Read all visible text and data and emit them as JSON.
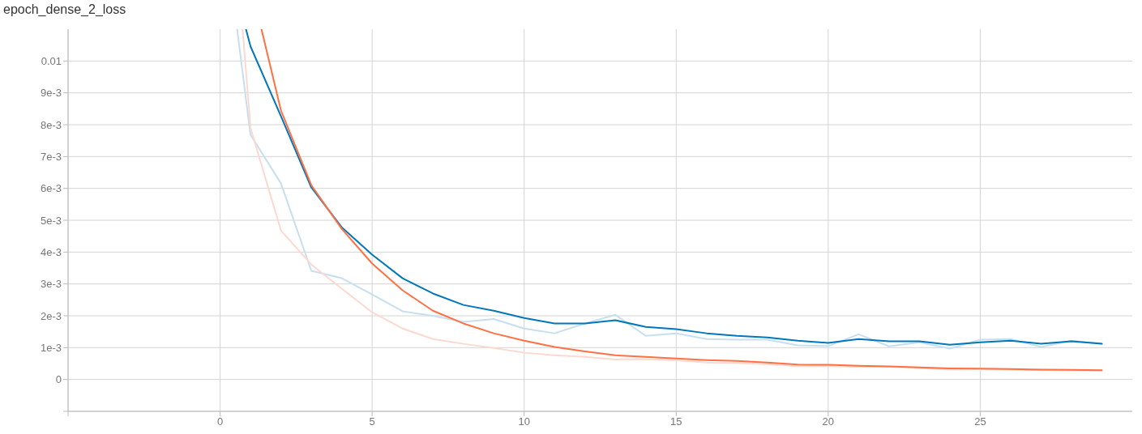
{
  "chart_data": {
    "type": "line",
    "title": "epoch_dense_2_loss",
    "xlim": [
      -5,
      30
    ],
    "xticks": [
      {
        "value": -5,
        "label": null
      },
      0,
      5,
      10,
      15,
      20,
      25
    ],
    "ylim": [
      -0.001,
      0.011
    ],
    "yticks": [
      {
        "value": -0.001,
        "label": null
      },
      0,
      {
        "value": 0.001,
        "label": "1e-3"
      },
      {
        "value": 0.002,
        "label": "2e-3"
      },
      {
        "value": 0.003,
        "label": "3e-3"
      },
      {
        "value": 0.004,
        "label": "4e-3"
      },
      {
        "value": 0.005,
        "label": "5e-3"
      },
      {
        "value": 0.006,
        "label": "6e-3"
      },
      {
        "value": 0.007,
        "label": "7e-3"
      },
      {
        "value": 0.008,
        "label": "8e-3"
      },
      {
        "value": 0.009,
        "label": "9e-3"
      },
      0.01
    ],
    "grid": true,
    "marker": "none",
    "line_style": "solid",
    "series": [
      {
        "color": "#c6dff0",
        "x": [
          0.56,
          1,
          2,
          3,
          4,
          5,
          6,
          7,
          8,
          9,
          10,
          11,
          12,
          13,
          14,
          15,
          16,
          17,
          18,
          19,
          20,
          21,
          22,
          23,
          24,
          25,
          26,
          27,
          28,
          29
        ],
        "values": [
          0.011,
          0.00768,
          0.00616,
          0.00341,
          0.00318,
          0.00267,
          0.00214,
          0.002,
          0.00181,
          0.0019,
          0.0016,
          0.00145,
          0.00176,
          0.00203,
          0.00137,
          0.00145,
          0.00127,
          0.00125,
          0.00125,
          0.00107,
          0.00105,
          0.00142,
          0.00104,
          0.00117,
          0.00097,
          0.00125,
          0.00127,
          0.00102,
          0.00122,
          0.00112
        ]
      },
      {
        "color": "#fcd9cf",
        "x": [
          0.74,
          1,
          2,
          3,
          4,
          5,
          6,
          7,
          8,
          9,
          10,
          11,
          12,
          13,
          14,
          15,
          16,
          17,
          18,
          19,
          20,
          21,
          22,
          23,
          24,
          25,
          26,
          27,
          28,
          29
        ],
        "values": [
          0.011,
          0.0079,
          0.00468,
          0.00361,
          0.00285,
          0.00211,
          0.0016,
          0.00127,
          0.00112,
          0.00099,
          0.00084,
          0.00076,
          0.00071,
          0.00063,
          0.00064,
          0.0006,
          0.00053,
          0.00052,
          0.00048,
          0.00042,
          0.00042,
          0.0004,
          0.0004,
          0.00036,
          0.00031,
          0.00032,
          0.00031,
          0.00029,
          0.00028,
          0.00028
        ]
      },
      {
        "color": "#0077bb",
        "x": [
          0.85,
          1,
          2,
          3,
          4,
          5,
          6,
          7,
          8,
          9,
          10,
          11,
          12,
          13,
          14,
          15,
          16,
          17,
          18,
          19,
          20,
          21,
          22,
          23,
          24,
          25,
          26,
          27,
          28,
          29
        ],
        "values": [
          0.011,
          0.01046,
          0.00827,
          0.00603,
          0.00478,
          0.00392,
          0.00318,
          0.0027,
          0.00234,
          0.00216,
          0.00193,
          0.00176,
          0.00176,
          0.00186,
          0.00165,
          0.00158,
          0.00145,
          0.00137,
          0.00132,
          0.00122,
          0.00115,
          0.00127,
          0.0012,
          0.0012,
          0.00109,
          0.00117,
          0.00122,
          0.00112,
          0.0012,
          0.00112
        ]
      },
      {
        "color": "#ff7043",
        "x": [
          1.36,
          2,
          3,
          4,
          5,
          6,
          7,
          8,
          9,
          10,
          11,
          12,
          13,
          14,
          15,
          16,
          17,
          18,
          19,
          20,
          21,
          22,
          23,
          24,
          25,
          26,
          27,
          28,
          29
        ],
        "values": [
          0.011,
          0.00845,
          0.0061,
          0.00473,
          0.00364,
          0.0028,
          0.00216,
          0.00176,
          0.00145,
          0.00122,
          0.00102,
          0.00088,
          0.00076,
          0.00071,
          0.00066,
          0.00061,
          0.00058,
          0.00053,
          0.00047,
          0.00046,
          0.00043,
          0.00041,
          0.00038,
          0.00035,
          0.00034,
          0.00033,
          0.00031,
          0.0003,
          0.00029
        ]
      }
    ]
  }
}
